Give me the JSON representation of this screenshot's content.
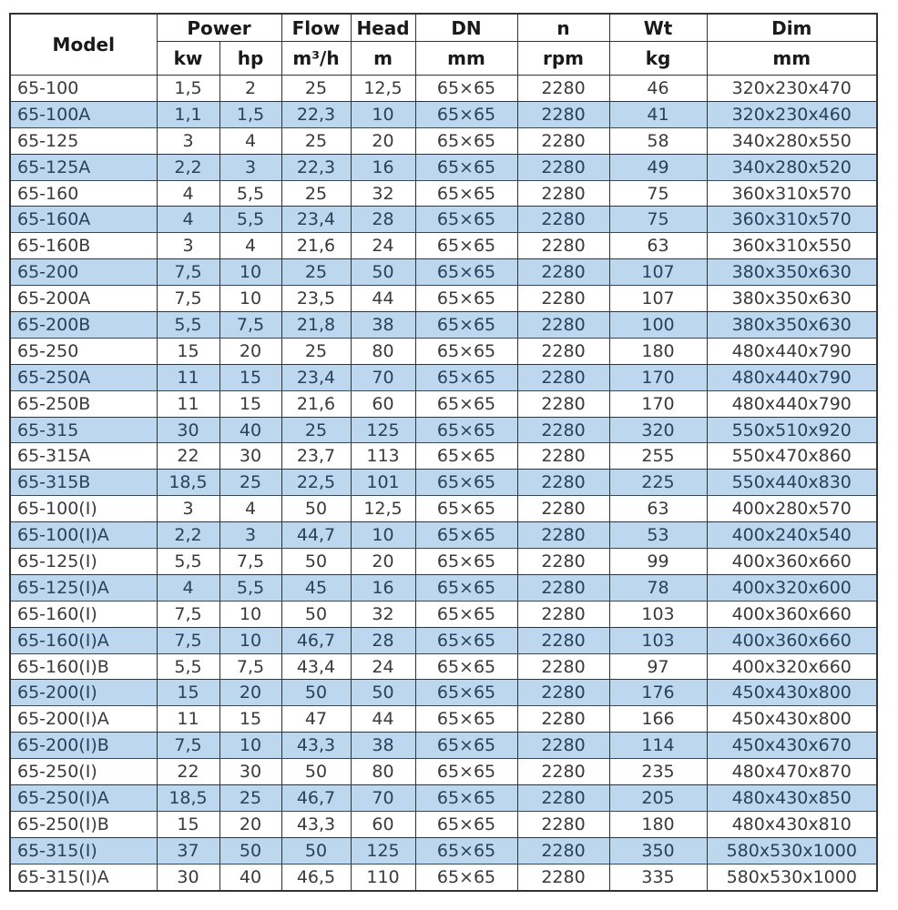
{
  "colors": {
    "stripe_blue": "#bdd7ee",
    "border_color": "#333333",
    "header_text_color": "#1a1a1a",
    "text_color": "#3a3a3a",
    "stripe_text_color": "#28415e",
    "stripe_border_color": "#2d4a66"
  },
  "table": {
    "header": {
      "model": "Model",
      "power": "Power",
      "flow": "Flow",
      "head": "Head",
      "dn": "DN",
      "n": "n",
      "wt": "Wt",
      "dim": "Dim",
      "units": [
        "kw",
        "hp",
        "m³/h",
        "m",
        "mm",
        "rpm",
        "kg",
        "mm"
      ]
    },
    "rows": [
      [
        "65-100",
        "1,5",
        "2",
        "25",
        "12,5",
        "65×65",
        "2280",
        "46",
        "320x230x470"
      ],
      [
        "65-100A",
        "1,1",
        "1,5",
        "22,3",
        "10",
        "65×65",
        "2280",
        "41",
        "320x230x460"
      ],
      [
        "65-125",
        "3",
        "4",
        "25",
        "20",
        "65×65",
        "2280",
        "58",
        "340x280x550"
      ],
      [
        "65-125A",
        "2,2",
        "3",
        "22,3",
        "16",
        "65×65",
        "2280",
        "49",
        "340x280x520"
      ],
      [
        "65-160",
        "4",
        "5,5",
        "25",
        "32",
        "65×65",
        "2280",
        "75",
        "360x310x570"
      ],
      [
        "65-160A",
        "4",
        "5,5",
        "23,4",
        "28",
        "65×65",
        "2280",
        "75",
        "360x310x570"
      ],
      [
        "65-160B",
        "3",
        "4",
        "21,6",
        "24",
        "65×65",
        "2280",
        "63",
        "360x310x550"
      ],
      [
        "65-200",
        "7,5",
        "10",
        "25",
        "50",
        "65×65",
        "2280",
        "107",
        "380x350x630"
      ],
      [
        "65-200A",
        "7,5",
        "10",
        "23,5",
        "44",
        "65×65",
        "2280",
        "107",
        "380x350x630"
      ],
      [
        "65-200B",
        "5,5",
        "7,5",
        "21,8",
        "38",
        "65×65",
        "2280",
        "100",
        "380x350x630"
      ],
      [
        "65-250",
        "15",
        "20",
        "25",
        "80",
        "65×65",
        "2280",
        "180",
        "480x440x790"
      ],
      [
        "65-250A",
        "11",
        "15",
        "23,4",
        "70",
        "65×65",
        "2280",
        "170",
        "480x440x790"
      ],
      [
        "65-250B",
        "11",
        "15",
        "21,6",
        "60",
        "65×65",
        "2280",
        "170",
        "480x440x790"
      ],
      [
        "65-315",
        "30",
        "40",
        "25",
        "125",
        "65×65",
        "2280",
        "320",
        "550x510x920"
      ],
      [
        "65-315A",
        "22",
        "30",
        "23,7",
        "113",
        "65×65",
        "2280",
        "255",
        "550x470x860"
      ],
      [
        "65-315B",
        "18,5",
        "25",
        "22,5",
        "101",
        "65×65",
        "2280",
        "225",
        "550x440x830"
      ],
      [
        "65-100(I)",
        "3",
        "4",
        "50",
        "12,5",
        "65×65",
        "2280",
        "63",
        "400x280x570"
      ],
      [
        "65-100(I)A",
        "2,2",
        "3",
        "44,7",
        "10",
        "65×65",
        "2280",
        "53",
        "400x240x540"
      ],
      [
        "65-125(I)",
        "5,5",
        "7,5",
        "50",
        "20",
        "65×65",
        "2280",
        "99",
        "400x360x660"
      ],
      [
        "65-125(I)A",
        "4",
        "5,5",
        "45",
        "16",
        "65×65",
        "2280",
        "78",
        "400x320x600"
      ],
      [
        "65-160(I)",
        "7,5",
        "10",
        "50",
        "32",
        "65×65",
        "2280",
        "103",
        "400x360x660"
      ],
      [
        "65-160(I)A",
        "7,5",
        "10",
        "46,7",
        "28",
        "65×65",
        "2280",
        "103",
        "400x360x660"
      ],
      [
        "65-160(I)B",
        "5,5",
        "7,5",
        "43,4",
        "24",
        "65×65",
        "2280",
        "97",
        "400x320x660"
      ],
      [
        "65-200(I)",
        "15",
        "20",
        "50",
        "50",
        "65×65",
        "2280",
        "176",
        "450x430x800"
      ],
      [
        "65-200(I)A",
        "11",
        "15",
        "47",
        "44",
        "65×65",
        "2280",
        "166",
        "450x430x800"
      ],
      [
        "65-200(I)B",
        "7,5",
        "10",
        "43,3",
        "38",
        "65×65",
        "2280",
        "114",
        "450x430x670"
      ],
      [
        "65-250(I)",
        "22",
        "30",
        "50",
        "80",
        "65×65",
        "2280",
        "235",
        "480x470x870"
      ],
      [
        "65-250(I)A",
        "18,5",
        "25",
        "46,7",
        "70",
        "65×65",
        "2280",
        "205",
        "480x430x850"
      ],
      [
        "65-250(I)B",
        "15",
        "20",
        "43,3",
        "60",
        "65×65",
        "2280",
        "180",
        "480x430x810"
      ],
      [
        "65-315(I)",
        "37",
        "50",
        "50",
        "125",
        "65×65",
        "2280",
        "350",
        "580x530x1000"
      ],
      [
        "65-315(I)A",
        "30",
        "40",
        "46,5",
        "110",
        "65×65",
        "2280",
        "335",
        "580x530x1000"
      ]
    ]
  }
}
